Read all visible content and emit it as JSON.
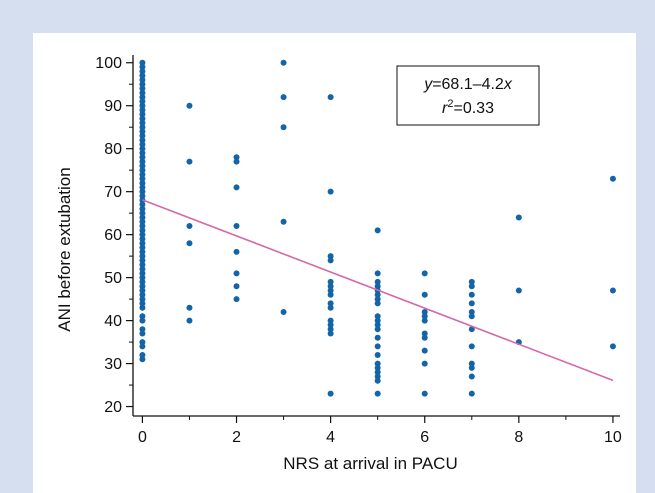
{
  "chart_data": {
    "type": "scatter",
    "xlabel": "NRS at arrival in PACU",
    "ylabel": "ANI before extubation",
    "xlim": [
      0,
      10
    ],
    "ylim": [
      20,
      100
    ],
    "x_ticks": [
      0,
      2,
      4,
      6,
      8,
      10
    ],
    "y_ticks": [
      20,
      30,
      40,
      50,
      60,
      70,
      80,
      90,
      100
    ],
    "marker_color": "#1464a8",
    "line_color": "#d36aa8",
    "regression": {
      "intercept": 68.1,
      "slope": -4.2,
      "equation_parts": [
        "y",
        "=68.1–4.2",
        "x"
      ],
      "r2_parts": [
        "r",
        "2",
        "=0.33"
      ]
    },
    "series": [
      {
        "points": [
          [
            0,
            100
          ],
          [
            0,
            99
          ],
          [
            0,
            98
          ],
          [
            0,
            97
          ],
          [
            0,
            96
          ],
          [
            0,
            95
          ],
          [
            0,
            94
          ],
          [
            0,
            93
          ],
          [
            0,
            92
          ],
          [
            0,
            91
          ],
          [
            0,
            90
          ],
          [
            0,
            89
          ],
          [
            0,
            88
          ],
          [
            0,
            87
          ],
          [
            0,
            86
          ],
          [
            0,
            85
          ],
          [
            0,
            84
          ],
          [
            0,
            83
          ],
          [
            0,
            82
          ],
          [
            0,
            81
          ],
          [
            0,
            80
          ],
          [
            0,
            79
          ],
          [
            0,
            78
          ],
          [
            0,
            77
          ],
          [
            0,
            76
          ],
          [
            0,
            75
          ],
          [
            0,
            74
          ],
          [
            0,
            73
          ],
          [
            0,
            72
          ],
          [
            0,
            71
          ],
          [
            0,
            70
          ],
          [
            0,
            69
          ],
          [
            0,
            68
          ],
          [
            0,
            67
          ],
          [
            0,
            66
          ],
          [
            0,
            65
          ],
          [
            0,
            64
          ],
          [
            0,
            63
          ],
          [
            0,
            62
          ],
          [
            0,
            61
          ],
          [
            0,
            60
          ],
          [
            0,
            59
          ],
          [
            0,
            58
          ],
          [
            0,
            57
          ],
          [
            0,
            56
          ],
          [
            0,
            55
          ],
          [
            0,
            54
          ],
          [
            0,
            53
          ],
          [
            0,
            52
          ],
          [
            0,
            51
          ],
          [
            0,
            50
          ],
          [
            0,
            49
          ],
          [
            0,
            48
          ],
          [
            0,
            47
          ],
          [
            0,
            46
          ],
          [
            0,
            45
          ],
          [
            0,
            44
          ],
          [
            0,
            43
          ],
          [
            0,
            41
          ],
          [
            0,
            40
          ],
          [
            0,
            38
          ],
          [
            0,
            37
          ],
          [
            0,
            35
          ],
          [
            0,
            34
          ],
          [
            0,
            32
          ],
          [
            0,
            31
          ],
          [
            1,
            90
          ],
          [
            1,
            77
          ],
          [
            1,
            62
          ],
          [
            1,
            58
          ],
          [
            1,
            43
          ],
          [
            1,
            40
          ],
          [
            2,
            78
          ],
          [
            2,
            77
          ],
          [
            2,
            71
          ],
          [
            2,
            62
          ],
          [
            2,
            56
          ],
          [
            2,
            51
          ],
          [
            2,
            48
          ],
          [
            2,
            45
          ],
          [
            3,
            100
          ],
          [
            3,
            92
          ],
          [
            3,
            85
          ],
          [
            3,
            63
          ],
          [
            3,
            42
          ],
          [
            4,
            92
          ],
          [
            4,
            70
          ],
          [
            4,
            55
          ],
          [
            4,
            54
          ],
          [
            4,
            49
          ],
          [
            4,
            48
          ],
          [
            4,
            47
          ],
          [
            4,
            46
          ],
          [
            4,
            44
          ],
          [
            4,
            43
          ],
          [
            4,
            40
          ],
          [
            4,
            39
          ],
          [
            4,
            38
          ],
          [
            4,
            37
          ],
          [
            4,
            23
          ],
          [
            5,
            61
          ],
          [
            5,
            51
          ],
          [
            5,
            49
          ],
          [
            5,
            48
          ],
          [
            5,
            47
          ],
          [
            5,
            46
          ],
          [
            5,
            45
          ],
          [
            5,
            44
          ],
          [
            5,
            41
          ],
          [
            5,
            40
          ],
          [
            5,
            39
          ],
          [
            5,
            38
          ],
          [
            5,
            36
          ],
          [
            5,
            34
          ],
          [
            5,
            32
          ],
          [
            5,
            30
          ],
          [
            5,
            29
          ],
          [
            5,
            28
          ],
          [
            5,
            27
          ],
          [
            5,
            26
          ],
          [
            5,
            23
          ],
          [
            6,
            51
          ],
          [
            6,
            46
          ],
          [
            6,
            42
          ],
          [
            6,
            41
          ],
          [
            6,
            40
          ],
          [
            6,
            37
          ],
          [
            6,
            36
          ],
          [
            6,
            33
          ],
          [
            6,
            30
          ],
          [
            6,
            23
          ],
          [
            7,
            49
          ],
          [
            7,
            48
          ],
          [
            7,
            46
          ],
          [
            7,
            44
          ],
          [
            7,
            42
          ],
          [
            7,
            41
          ],
          [
            7,
            38
          ],
          [
            7,
            34
          ],
          [
            7,
            30
          ],
          [
            7,
            29
          ],
          [
            7,
            27
          ],
          [
            7,
            23
          ],
          [
            8,
            64
          ],
          [
            8,
            47
          ],
          [
            8,
            35
          ],
          [
            10,
            73
          ],
          [
            10,
            47
          ],
          [
            10,
            34
          ]
        ]
      }
    ]
  }
}
